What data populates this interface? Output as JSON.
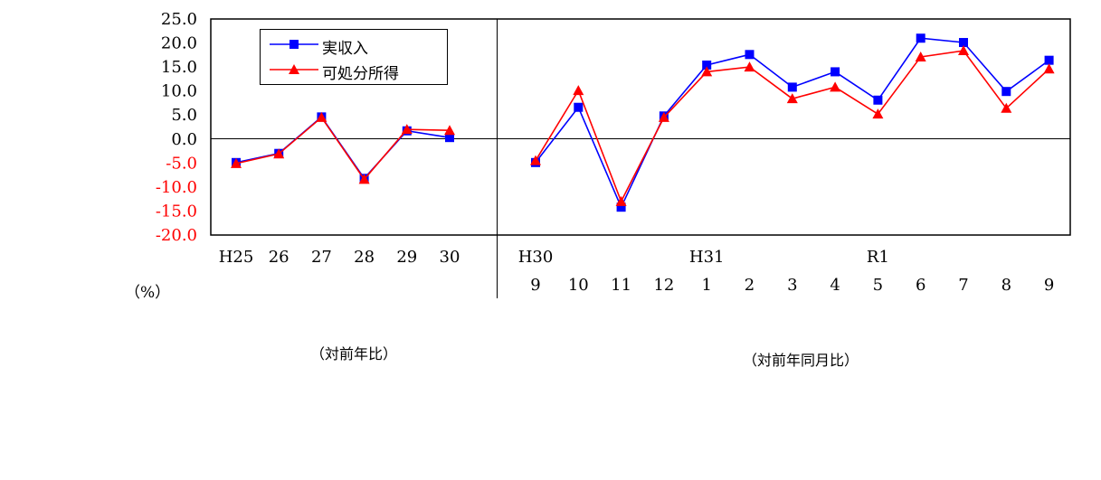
{
  "chart_data": {
    "type": "line",
    "y_unit": "（%）",
    "ylim": [
      -20,
      25
    ],
    "y_ticks": [
      "25.0",
      "20.0",
      "15.0",
      "10.0",
      "5.0",
      "0.0",
      "-5.0",
      "-10.0",
      "-15.0",
      "-20.0"
    ],
    "y_tick_values": [
      25,
      20,
      15,
      10,
      5,
      0,
      -5,
      -10,
      -15,
      -20
    ],
    "left_panel": {
      "caption": "（対前年比）",
      "x_labels": [
        "H25",
        "26",
        "27",
        "28",
        "29",
        "30"
      ]
    },
    "right_panel": {
      "caption": "（対前年同月比）",
      "year_labels": [
        {
          "label": "H30",
          "at": 0
        },
        {
          "label": "H31",
          "at": 4
        },
        {
          "label": "R1",
          "at": 8
        }
      ],
      "x_labels": [
        "9",
        "10",
        "11",
        "12",
        "1",
        "2",
        "3",
        "4",
        "5",
        "6",
        "7",
        "8",
        "9"
      ]
    },
    "series": [
      {
        "name": "実収入",
        "color": "#0000ff",
        "marker": "square",
        "left_values": [
          -4.9,
          -3.0,
          4.6,
          -8.2,
          1.7,
          0.3
        ],
        "right_values": [
          -4.9,
          6.6,
          -14.2,
          4.8,
          15.4,
          17.6,
          10.8,
          14.0,
          8.1,
          21.0,
          20.1,
          9.9,
          16.4
        ]
      },
      {
        "name": "可処分所得",
        "color": "#ff0000",
        "marker": "triangle",
        "left_values": [
          -5.1,
          -3.1,
          4.5,
          -8.4,
          2.0,
          1.8
        ],
        "right_values": [
          -4.5,
          10.1,
          -13.0,
          4.5,
          14.0,
          15.0,
          8.4,
          10.8,
          5.2,
          17.1,
          18.4,
          6.4,
          14.6
        ]
      }
    ],
    "legend": "top-left"
  }
}
